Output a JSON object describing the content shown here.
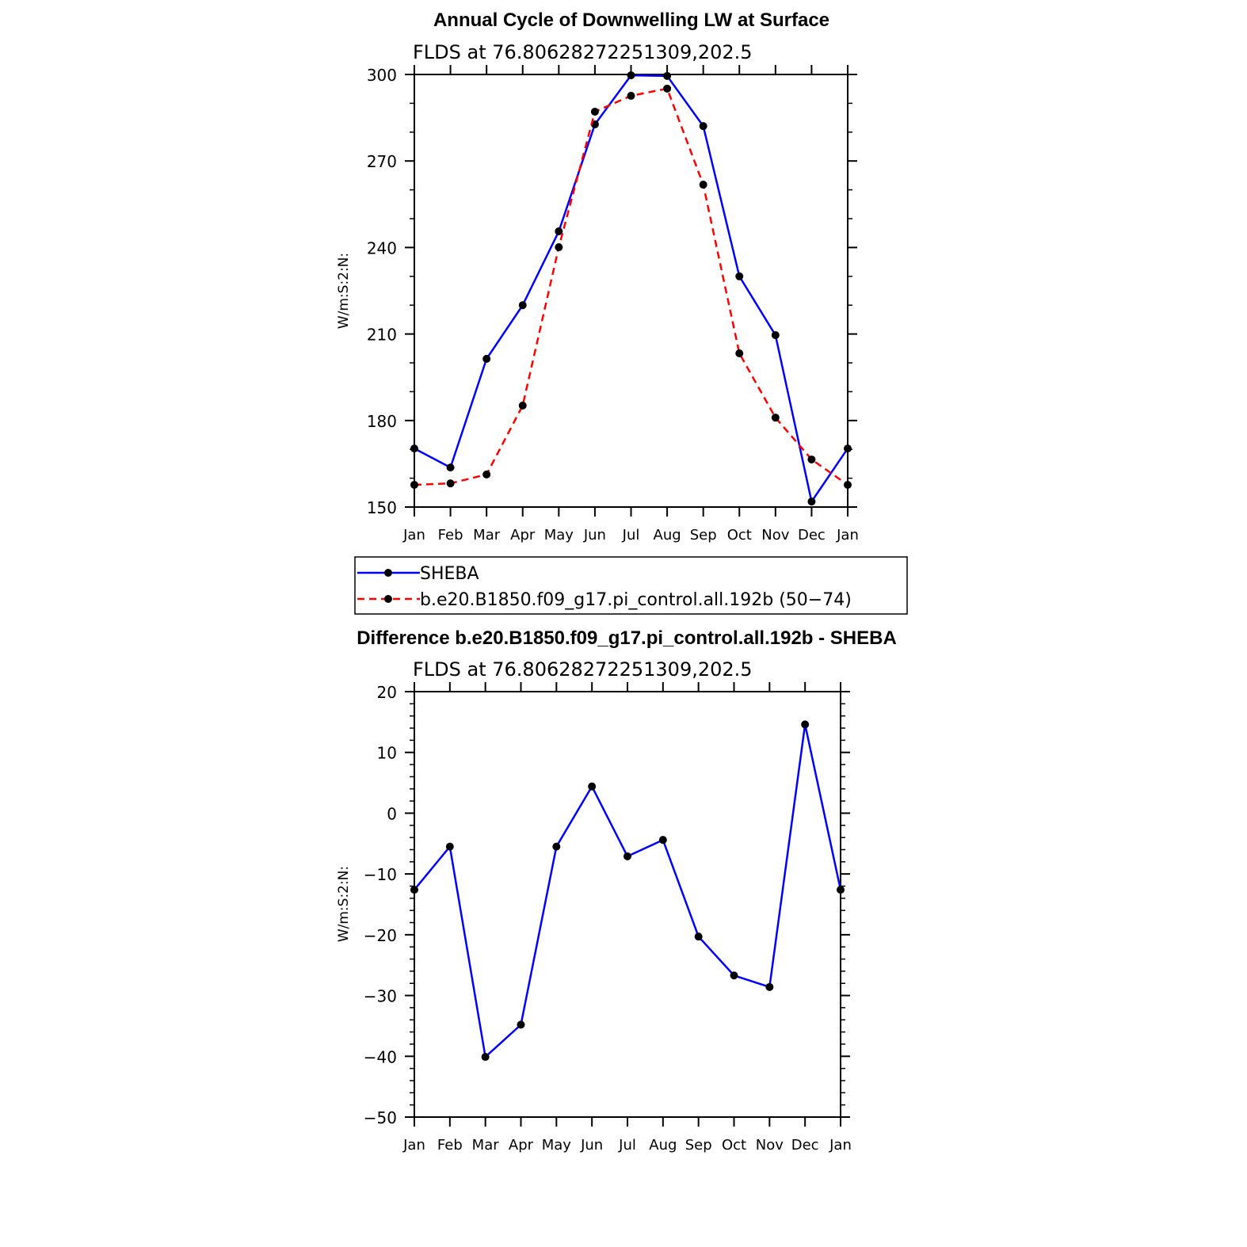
{
  "chart_data": [
    {
      "type": "line",
      "title": "Annual Cycle of Downwelling LW at Surface",
      "subtitle": "FLDS at 76.80628272251309,202.5",
      "xlabel": "",
      "ylabel": "W/m:S:2:N:",
      "categories": [
        "Jan",
        "Feb",
        "Mar",
        "Apr",
        "May",
        "Jun",
        "Jul",
        "Aug",
        "Sep",
        "Oct",
        "Nov",
        "Dec",
        "Jan"
      ],
      "ylim": [
        150,
        300
      ],
      "yticks": [
        "150",
        "180",
        "210",
        "240",
        "270",
        "300"
      ],
      "ytick_values": [
        150,
        180,
        210,
        240,
        270,
        300
      ],
      "yminor_step": 10,
      "grid": false,
      "legend_placement": "below",
      "series": [
        {
          "name": "SHEBA",
          "color": "#0000ff",
          "dash": "solid",
          "values": [
            170.3,
            163.7,
            201.4,
            220.0,
            245.6,
            282.7,
            299.7,
            299.5,
            282.1,
            230.0,
            209.6,
            151.9,
            170.3
          ]
        },
        {
          "name": "b.e20.B1850.f09_g17.pi_control.all.192b (50−74)",
          "color": "#ff0000",
          "dash": "dashed",
          "values": [
            157.7,
            158.2,
            161.3,
            185.2,
            240.1,
            287.1,
            292.6,
            295.1,
            261.8,
            203.3,
            181.0,
            166.5,
            157.7
          ]
        }
      ]
    },
    {
      "type": "line",
      "title": "Difference b.e20.B1850.f09_g17.pi_control.all.192b - SHEBA",
      "subtitle": "FLDS at 76.80628272251309,202.5",
      "xlabel": "",
      "ylabel": "W/m:S:2:N:",
      "categories": [
        "Jan",
        "Feb",
        "Mar",
        "Apr",
        "May",
        "Jun",
        "Jul",
        "Aug",
        "Sep",
        "Oct",
        "Nov",
        "Dec",
        "Jan"
      ],
      "ylim": [
        -50,
        20
      ],
      "yticks": [
        "−50",
        "−40",
        "−30",
        "−20",
        "−10",
        "0",
        "10",
        "20"
      ],
      "ytick_values": [
        -50,
        -40,
        -30,
        -20,
        -10,
        0,
        10,
        20
      ],
      "yminor_step": 2,
      "grid": false,
      "series": [
        {
          "name": "Difference",
          "color": "#0000ff",
          "dash": "solid",
          "values": [
            -12.6,
            -5.5,
            -40.1,
            -34.8,
            -5.5,
            4.4,
            -7.1,
            -4.4,
            -20.3,
            -26.7,
            -28.6,
            14.6,
            -12.6
          ]
        }
      ]
    }
  ]
}
